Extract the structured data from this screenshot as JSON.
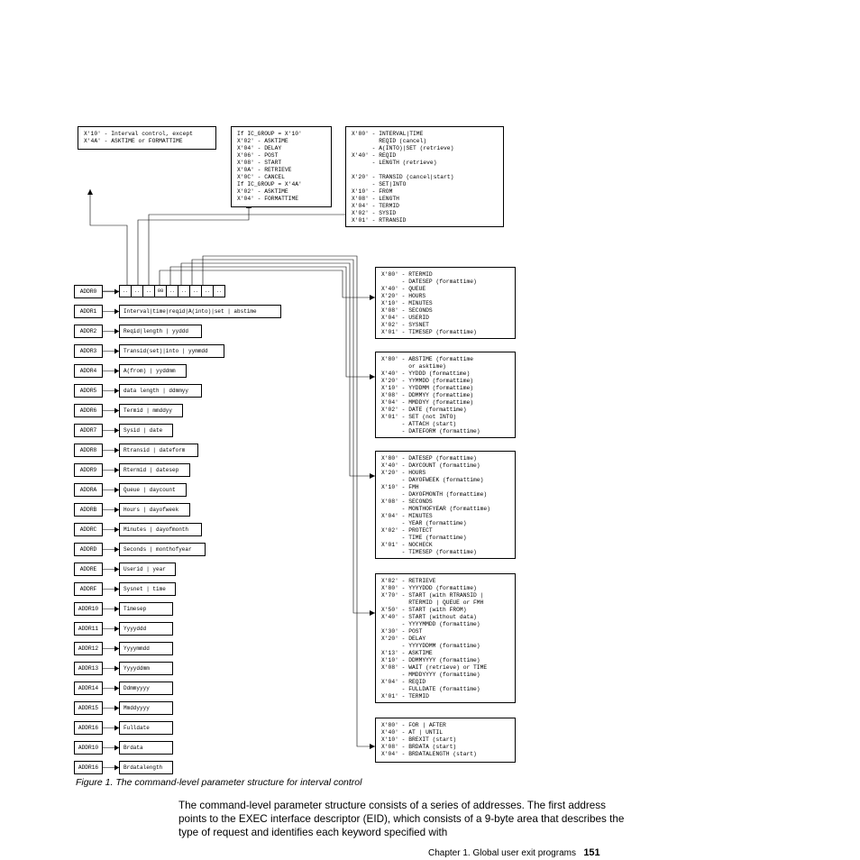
{
  "topBoxes": {
    "t1": "X'10' - Interval control, except\nX'4A' - ASKTIME or FORMATTIME",
    "t2": "If IC_GROUP = X'10'\nX'02' - ASKTIME\nX'04' - DELAY\nX'06' - POST\nX'08' - START\nX'0A' - RETRIEVE\nX'0C' - CANCEL\nIf IC_GROUP = X'4A'\nX'02' - ASKTIME\nX'04' - FORMATTIME",
    "t3": "X'80' - INTERVAL|TIME\n        REQID (cancel)\n      - A(INTO)|SET (retrieve)\nX'40' - REQID\n      - LENGTH (retrieve)\n\nX'20' - TRANSID (cancel|start)\n      - SET|INTO\nX'10' - FROM\nX'08' - LENGTH\nX'04' - TERMID\nX'02' - SYSID\nX'01' - RTRANSID"
  },
  "rightBoxes": {
    "r1": "X'80' - RTERMID\n      - DATESEP (formattime)\nX'40' - QUEUE\nX'20' - HOURS\nX'10' - MINUTES\nX'08' - SECONDS\nX'04' - USERID\nX'02' - SYSNET\nX'01' - TIMESEP (formattime)",
    "r2": "X'80' - ABSTIME (formattime\n        or asktime)\nX'40' - YYDDD (formattime)\nX'20' - YYMMDD (formattime)\nX'10' - YYDDMM (formattime)\nX'08' - DDMMYY (formattime)\nX'04' - MMDDYY (formattime)\nX'02' - DATE (formattime)\nX'01' - SET (not INTO)\n      - ATTACH (start)\n      - DATEFORM (formattime)",
    "r3": "X'80' - DATESEP (formattime)\nX'40' - DAYCOUNT (formattime)\nX'20' - HOURS\n      - DAYOFWEEK (formattime)\nX'10' - FMH\n      - DAYOFMONTH (formattime)\nX'08' - SECONDS\n      - MONTHOFYEAR (formattime)\nX'04' - MINUTES\n      - YEAR (formattime)\nX'02' - PROTECT\n      - TIME (formattime)\nX'01' - NOCHECK\n      - TIMESEP (formattime)",
    "r4": "X'82' - RETRIEVE\nX'80' - YYYYDDD (formattime)\nX'70' - START (with RTRANSID |\n        RTERMID | QUEUE or FMH\nX'50' - START (with FROM)\nX'40' - START (without data)\n      - YYYYMMDD (formattime)\nX'30' - POST\nX'20' - DELAY\n      - YYYYDDMM (formattime)\nX'13' - ASKTIME\nX'10' - DDMMYYYY (formattime)\nX'08' - WAIT (retrieve) or TIME\n      - MMDDYYYY (formattime)\nX'04' - REQID\n      - FULLDATE (formattime)\nX'01' - TERMID",
    "r5": "X'80' - FOR | AFTER\nX'40' - AT | UNTIL\nX'10' - BREXIT (start)\nX'08' - BRDATA (start)\nX'04' - BRDATALENGTH (start)"
  },
  "addrLabels": [
    "ADDR0",
    "ADDR1",
    "ADDR2",
    "ADDR3",
    "ADDR4",
    "ADDR5",
    "ADDR6",
    "ADDR7",
    "ADDR8",
    "ADDR9",
    "ADDRA",
    "ADDRB",
    "ADDRC",
    "ADDRD",
    "ADDRE",
    "ADDRF",
    "ADDR10",
    "ADDR11",
    "ADDR12",
    "ADDR13",
    "ADDR14",
    "ADDR15",
    "ADDR16",
    "ADDR10",
    "ADDR16"
  ],
  "addrVals": [
    null,
    "Interval|time|reqid|A(into)|set | abstime",
    "Reqid|length | yyddd",
    "Transid(set)|into | yymmdd",
    "A(from) | yyddmm",
    "data length | ddmmyy",
    "Termid | mmddyy",
    "Sysid | date",
    "Rtransid | dateform",
    "Rtermid | datesep",
    "Queue | daycount",
    "Hours | dayofweek",
    "Minutes | dayofmonth",
    "Seconds | monthofyear",
    "Userid | year",
    "Sysnet | time",
    "Timesep",
    "Yyyyddd",
    "Yyyymmdd",
    "Yyyyddmm",
    "Ddmmyyyy",
    "Mmddyyyy",
    "Fulldate",
    "Brdata",
    "Brdatalength"
  ],
  "eidCells": [
    "..",
    "..",
    "..",
    "08",
    "..",
    "..",
    "..",
    "..",
    ".."
  ],
  "caption": "Figure 1. The command-level parameter structure for interval control",
  "bodyText": "The command-level parameter structure consists of a series of addresses. The first address points to the EXEC interface descriptor (EID), which consists of a 9-byte area that describes the type of request and identifies each keyword specified with",
  "footerChapter": "Chapter 1. Global user exit programs",
  "footerPage": "151"
}
